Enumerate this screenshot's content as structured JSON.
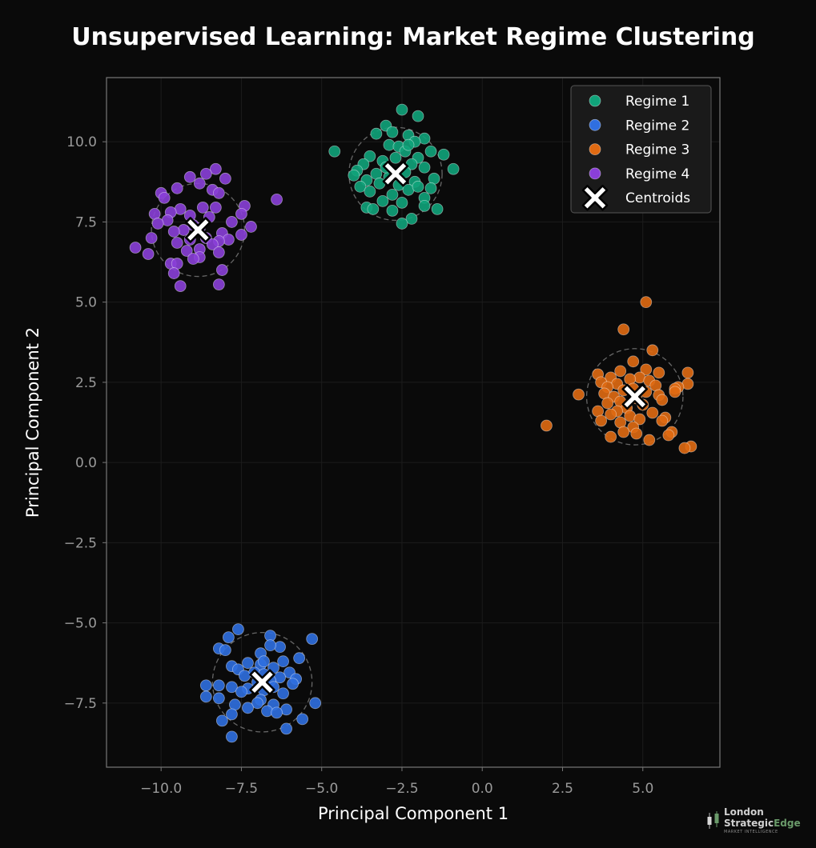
{
  "colors": {
    "background": "#0a0a0a",
    "regime1": "#10a37a",
    "regime2": "#2f6fe0",
    "regime3": "#e06a12",
    "regime4": "#8a3fd8",
    "centroid_fill": "#ffffff",
    "centroid_edge": "#000000",
    "grid": "#1c1c1c",
    "spine": "#777777"
  },
  "logo": {
    "line1": "London",
    "line2a": "Strategic",
    "line2b": "Edge",
    "line3": "MARKET INTELLIGENCE"
  },
  "chart_data": {
    "type": "scatter",
    "title": "Unsupervised Learning: Market Regime Clustering",
    "xlabel": "Principal Component 1",
    "ylabel": "Principal Component 2",
    "xlim": [
      -11.7,
      7.4
    ],
    "ylim": [
      -9.5,
      12.0
    ],
    "xticks": [
      -10.0,
      -7.5,
      -5.0,
      -2.5,
      0.0,
      2.5,
      5.0
    ],
    "xtick_labels": [
      "−10.0",
      "−7.5",
      "−5.0",
      "−2.5",
      "0.0",
      "2.5",
      "5.0"
    ],
    "yticks": [
      -7.5,
      -5.0,
      -2.5,
      0.0,
      2.5,
      5.0,
      7.5,
      10.0
    ],
    "ytick_labels": [
      "−7.5",
      "−5.0",
      "−2.5",
      "0.0",
      "2.5",
      "5.0",
      "7.5",
      "10.0"
    ],
    "grid": true,
    "legend_position": "top-right",
    "series": [
      {
        "name": "Regime 1",
        "key": "regime1",
        "points": [
          [
            -2.5,
            11.0
          ],
          [
            -2.0,
            10.8
          ],
          [
            -3.0,
            10.5
          ],
          [
            -2.8,
            10.3
          ],
          [
            -2.3,
            10.2
          ],
          [
            -3.3,
            10.25
          ],
          [
            -1.8,
            10.1
          ],
          [
            -2.1,
            10.0
          ],
          [
            -2.9,
            9.9
          ],
          [
            -2.6,
            9.85
          ],
          [
            -2.4,
            9.7
          ],
          [
            -1.6,
            9.7
          ],
          [
            -1.2,
            9.6
          ],
          [
            -3.5,
            9.55
          ],
          [
            -2.0,
            9.5
          ],
          [
            -2.7,
            9.5
          ],
          [
            -3.1,
            9.4
          ],
          [
            -3.7,
            9.3
          ],
          [
            -2.2,
            9.3
          ],
          [
            -1.8,
            9.2
          ],
          [
            -0.9,
            9.15
          ],
          [
            -3.9,
            9.1
          ],
          [
            -2.4,
            9.05
          ],
          [
            -3.3,
            9.0
          ],
          [
            -4.0,
            8.95
          ],
          [
            -2.9,
            8.9
          ],
          [
            -1.5,
            8.85
          ],
          [
            -3.6,
            8.8
          ],
          [
            -2.1,
            8.75
          ],
          [
            -3.2,
            8.7
          ],
          [
            -2.6,
            8.65
          ],
          [
            -3.8,
            8.6
          ],
          [
            -1.6,
            8.55
          ],
          [
            -2.3,
            8.5
          ],
          [
            -3.5,
            8.45
          ],
          [
            -2.8,
            8.35
          ],
          [
            -1.8,
            8.25
          ],
          [
            -3.1,
            8.15
          ],
          [
            -2.5,
            8.1
          ],
          [
            -3.6,
            7.95
          ],
          [
            -1.8,
            8.0
          ],
          [
            -3.4,
            7.9
          ],
          [
            -2.8,
            7.85
          ],
          [
            -1.4,
            7.9
          ],
          [
            -2.2,
            7.6
          ],
          [
            -2.5,
            7.45
          ],
          [
            -4.6,
            9.7
          ],
          [
            -2.3,
            9.9
          ],
          [
            -3.0,
            9.2
          ],
          [
            -2.0,
            8.6
          ]
        ]
      },
      {
        "name": "Regime 2",
        "key": "regime2",
        "points": [
          [
            -7.6,
            -5.2
          ],
          [
            -6.6,
            -5.4
          ],
          [
            -5.3,
            -5.5
          ],
          [
            -7.9,
            -5.45
          ],
          [
            -8.2,
            -5.8
          ],
          [
            -6.3,
            -5.75
          ],
          [
            -6.6,
            -5.7
          ],
          [
            -8.0,
            -5.85
          ],
          [
            -6.9,
            -5.95
          ],
          [
            -5.7,
            -6.1
          ],
          [
            -6.2,
            -6.2
          ],
          [
            -7.3,
            -6.25
          ],
          [
            -6.9,
            -6.3
          ],
          [
            -7.8,
            -6.35
          ],
          [
            -6.5,
            -6.4
          ],
          [
            -7.6,
            -6.45
          ],
          [
            -6.0,
            -6.55
          ],
          [
            -7.1,
            -6.55
          ],
          [
            -6.8,
            -6.6
          ],
          [
            -7.4,
            -6.65
          ],
          [
            -6.3,
            -6.7
          ],
          [
            -5.8,
            -6.75
          ],
          [
            -6.6,
            -6.8
          ],
          [
            -7.0,
            -6.85
          ],
          [
            -5.9,
            -6.9
          ],
          [
            -8.6,
            -6.95
          ],
          [
            -8.2,
            -6.95
          ],
          [
            -7.8,
            -7.0
          ],
          [
            -6.5,
            -7.0
          ],
          [
            -7.3,
            -7.05
          ],
          [
            -6.8,
            -7.1
          ],
          [
            -6.2,
            -7.2
          ],
          [
            -7.5,
            -7.15
          ],
          [
            -8.6,
            -7.3
          ],
          [
            -8.2,
            -7.35
          ],
          [
            -6.9,
            -7.4
          ],
          [
            -7.0,
            -7.5
          ],
          [
            -5.2,
            -7.5
          ],
          [
            -7.7,
            -7.55
          ],
          [
            -6.5,
            -7.55
          ],
          [
            -7.3,
            -7.65
          ],
          [
            -6.1,
            -7.7
          ],
          [
            -6.7,
            -7.75
          ],
          [
            -6.4,
            -7.8
          ],
          [
            -7.8,
            -7.85
          ],
          [
            -5.6,
            -8.0
          ],
          [
            -8.1,
            -8.05
          ],
          [
            -6.1,
            -8.3
          ],
          [
            -7.8,
            -8.55
          ],
          [
            -6.8,
            -6.2
          ]
        ]
      },
      {
        "name": "Regime 3",
        "key": "regime3",
        "points": [
          [
            5.1,
            5.0
          ],
          [
            4.4,
            4.15
          ],
          [
            5.3,
            3.5
          ],
          [
            4.7,
            3.15
          ],
          [
            5.1,
            2.9
          ],
          [
            4.3,
            2.85
          ],
          [
            5.5,
            2.8
          ],
          [
            6.4,
            2.8
          ],
          [
            3.6,
            2.75
          ],
          [
            4.0,
            2.65
          ],
          [
            4.9,
            2.65
          ],
          [
            4.6,
            2.6
          ],
          [
            5.2,
            2.55
          ],
          [
            3.7,
            2.5
          ],
          [
            4.2,
            2.45
          ],
          [
            6.4,
            2.45
          ],
          [
            5.4,
            2.4
          ],
          [
            3.9,
            2.35
          ],
          [
            6.1,
            2.35
          ],
          [
            4.7,
            2.3
          ],
          [
            6.0,
            2.3
          ],
          [
            4.4,
            2.25
          ],
          [
            5.1,
            2.2
          ],
          [
            3.8,
            2.15
          ],
          [
            3.0,
            2.12
          ],
          [
            5.5,
            2.1
          ],
          [
            4.1,
            2.05
          ],
          [
            4.8,
            2.0
          ],
          [
            5.6,
            1.95
          ],
          [
            4.3,
            1.9
          ],
          [
            3.9,
            1.85
          ],
          [
            5.0,
            1.8
          ],
          [
            4.5,
            1.7
          ],
          [
            3.6,
            1.6
          ],
          [
            4.2,
            1.6
          ],
          [
            5.3,
            1.55
          ],
          [
            4.0,
            1.5
          ],
          [
            4.6,
            1.45
          ],
          [
            5.7,
            1.4
          ],
          [
            4.9,
            1.35
          ],
          [
            3.7,
            1.3
          ],
          [
            5.6,
            1.3
          ],
          [
            4.3,
            1.25
          ],
          [
            2.0,
            1.15
          ],
          [
            4.7,
            1.1
          ],
          [
            4.4,
            0.95
          ],
          [
            5.9,
            0.95
          ],
          [
            4.8,
            0.9
          ],
          [
            5.8,
            0.85
          ],
          [
            4.0,
            0.8
          ],
          [
            5.2,
            0.7
          ],
          [
            6.5,
            0.5
          ],
          [
            6.3,
            0.45
          ],
          [
            6.0,
            2.2
          ]
        ]
      },
      {
        "name": "Regime 4",
        "key": "regime4",
        "points": [
          [
            -8.3,
            9.15
          ],
          [
            -8.6,
            9.0
          ],
          [
            -9.1,
            8.9
          ],
          [
            -8.0,
            8.85
          ],
          [
            -8.8,
            8.7
          ],
          [
            -8.4,
            8.5
          ],
          [
            -9.5,
            8.55
          ],
          [
            -10.0,
            8.4
          ],
          [
            -8.2,
            8.4
          ],
          [
            -9.9,
            8.25
          ],
          [
            -6.4,
            8.2
          ],
          [
            -7.4,
            8.0
          ],
          [
            -8.7,
            7.95
          ],
          [
            -8.3,
            7.95
          ],
          [
            -9.4,
            7.9
          ],
          [
            -9.7,
            7.8
          ],
          [
            -10.2,
            7.75
          ],
          [
            -7.5,
            7.75
          ],
          [
            -9.1,
            7.7
          ],
          [
            -8.5,
            7.65
          ],
          [
            -9.8,
            7.55
          ],
          [
            -7.8,
            7.5
          ],
          [
            -10.1,
            7.45
          ],
          [
            -9.0,
            7.4
          ],
          [
            -7.2,
            7.35
          ],
          [
            -8.8,
            7.3
          ],
          [
            -9.3,
            7.25
          ],
          [
            -9.6,
            7.2
          ],
          [
            -8.1,
            7.15
          ],
          [
            -7.5,
            7.1
          ],
          [
            -10.3,
            7.0
          ],
          [
            -8.6,
            7.0
          ],
          [
            -9.1,
            6.95
          ],
          [
            -7.9,
            6.95
          ],
          [
            -8.2,
            6.9
          ],
          [
            -9.5,
            6.85
          ],
          [
            -8.4,
            6.8
          ],
          [
            -10.8,
            6.7
          ],
          [
            -8.8,
            6.65
          ],
          [
            -9.2,
            6.6
          ],
          [
            -8.2,
            6.55
          ],
          [
            -10.4,
            6.5
          ],
          [
            -8.8,
            6.4
          ],
          [
            -9.0,
            6.35
          ],
          [
            -9.7,
            6.2
          ],
          [
            -9.5,
            6.2
          ],
          [
            -8.1,
            6.0
          ],
          [
            -9.6,
            5.9
          ],
          [
            -8.2,
            5.55
          ],
          [
            -9.4,
            5.5
          ]
        ]
      }
    ],
    "centroids": {
      "name": "Centroids",
      "points": [
        [
          -2.7,
          9.0
        ],
        [
          -6.85,
          -6.85
        ],
        [
          4.75,
          2.05
        ],
        [
          -8.85,
          7.25
        ]
      ],
      "radii": [
        1.45,
        1.55,
        1.5,
        1.45
      ]
    }
  }
}
